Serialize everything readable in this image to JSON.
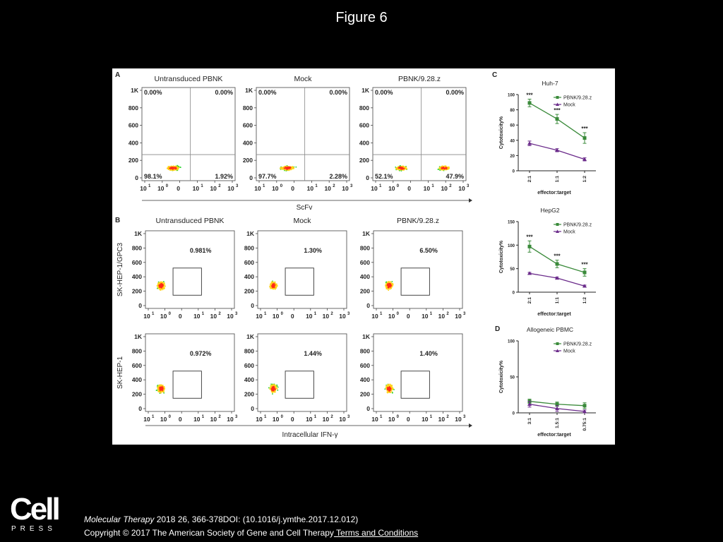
{
  "slide": {
    "title": "Figure 6"
  },
  "panel_a": {
    "letter": "A",
    "x_axis_label": "ScFv",
    "y_ticks": [
      "1K",
      "800",
      "600",
      "400",
      "200",
      "0"
    ],
    "x_ticks": [
      "10",
      "10",
      "0",
      "10",
      "10",
      "10"
    ],
    "x_exponents": [
      "1",
      "0",
      "",
      "1",
      "2",
      "3"
    ],
    "plots": [
      {
        "title": "Untransduced PBNK",
        "ul": "0.00%",
        "ur": "0.00%",
        "ll": "98.1%",
        "lr": "1.92%",
        "populations": 1
      },
      {
        "title": "Mock",
        "ul": "0.00%",
        "ur": "0.00%",
        "ll": "97.7%",
        "lr": "2.28%",
        "populations": 1
      },
      {
        "title": "PBNK/9.28.z",
        "ul": "0.00%",
        "ur": "0.00%",
        "ll": "52.1%",
        "lr": "47.9%",
        "populations": 2
      }
    ]
  },
  "panel_b": {
    "letter": "B",
    "x_axis_label": "Intracellular IFN-γ",
    "col_titles": [
      "Untransduced PBNK",
      "Mock",
      "PBNK/9.28.z"
    ],
    "y_ticks": [
      "1K",
      "800",
      "600",
      "400",
      "200",
      "0"
    ],
    "x_ticks": [
      "10",
      "10",
      "0",
      "10",
      "10",
      "10"
    ],
    "x_exponents": [
      "1",
      "0",
      "",
      "1",
      "2",
      "3"
    ],
    "rows": [
      {
        "label": "SK-HEP-1/GPC3",
        "values": [
          "0.981%",
          "1.30%",
          "6.50%"
        ]
      },
      {
        "label": "SK-HEP-1",
        "values": [
          "0.972%",
          "1.44%",
          "1.40%"
        ]
      }
    ]
  },
  "chart_data": [
    {
      "type": "line",
      "panel": "C",
      "title": "Huh-7",
      "xlabel": "effector:target",
      "ylabel": "Cytotoxicity%",
      "categories": [
        "2:1",
        "1:1",
        "1:2"
      ],
      "ylim": [
        0,
        100
      ],
      "yticks": [
        0,
        20,
        40,
        60,
        80,
        100
      ],
      "legend_position": "top-right",
      "significance": [
        "***",
        "***",
        "***"
      ],
      "series": [
        {
          "name": "PBNK/9.28.z",
          "values": [
            89,
            68,
            43
          ],
          "errors": [
            5,
            6,
            7
          ],
          "color": "#3a8a3a",
          "marker": "square"
        },
        {
          "name": "Mock",
          "values": [
            36,
            27,
            15
          ],
          "errors": [
            3,
            2,
            2
          ],
          "color": "#6a2a8a",
          "marker": "triangle"
        }
      ]
    },
    {
      "type": "line",
      "panel": "C",
      "title": "HepG2",
      "xlabel": "effector:target",
      "ylabel": "Cytotoxicity%",
      "categories": [
        "2:1",
        "1:1",
        "1:2"
      ],
      "ylim": [
        0,
        150
      ],
      "yticks": [
        0,
        50,
        100,
        150
      ],
      "legend_position": "top-right",
      "significance": [
        "***",
        "***",
        "***"
      ],
      "series": [
        {
          "name": "PBNK/9.28.z",
          "values": [
            97,
            60,
            42
          ],
          "errors": [
            12,
            8,
            8
          ],
          "color": "#3a8a3a",
          "marker": "square"
        },
        {
          "name": "Mock",
          "values": [
            40,
            30,
            13
          ],
          "errors": [
            2,
            2,
            2
          ],
          "color": "#6a2a8a",
          "marker": "triangle"
        }
      ]
    },
    {
      "type": "line",
      "panel": "D",
      "title": "Allogeneic PBMC",
      "xlabel": "effector:target",
      "ylabel": "Cytotoxicity%",
      "categories": [
        "3:1",
        "1.5:1",
        "0.75:1"
      ],
      "ylim": [
        0,
        100
      ],
      "yticks": [
        0,
        50,
        100
      ],
      "legend_position": "top-right",
      "significance": [
        "",
        "",
        ""
      ],
      "series": [
        {
          "name": "PBNK/9.28.z",
          "values": [
            16,
            12,
            10
          ],
          "errors": [
            3,
            3,
            4
          ],
          "color": "#3a8a3a",
          "marker": "square"
        },
        {
          "name": "Mock",
          "values": [
            12,
            6,
            2
          ],
          "errors": [
            4,
            4,
            2
          ],
          "color": "#6a2a8a",
          "marker": "triangle"
        }
      ]
    }
  ],
  "colors": {
    "density_low": "#1a2ab0",
    "density_mid": "#2fd62f",
    "density_high": "#ff2a1a",
    "gate": "#333333"
  },
  "footer": {
    "logo_word": "Cell",
    "logo_sub": "PRESS",
    "journal": "Molecular Therapy",
    "citation_rest": " 2018 26, 366-378DOI: (10.1016/j.ymthe.2017.12.012)",
    "copyright": "Copyright © 2017 The American Society of Gene and Cell Therapy",
    "terms": " Terms and Conditions"
  }
}
